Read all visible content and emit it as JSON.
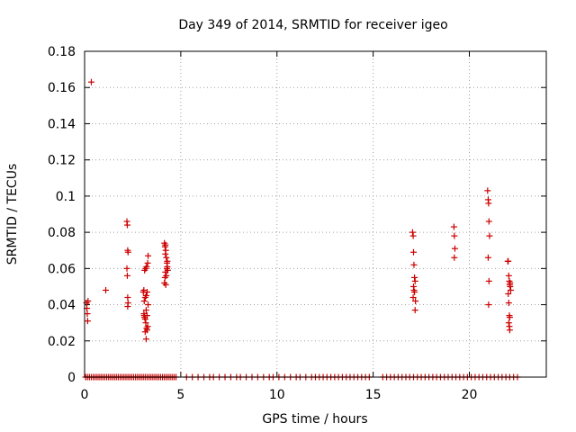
{
  "chart_data": {
    "type": "scatter",
    "title": "Day 349 of 2014, SRMTID for receiver igeo",
    "xlabel": "GPS time / hours",
    "ylabel": "SRMTID / TECUs",
    "xlim": [
      0,
      24
    ],
    "ylim": [
      0,
      0.18
    ],
    "x_ticks": [
      0,
      5,
      10,
      15,
      20
    ],
    "x_tick_labels": [
      "0",
      "5",
      "10",
      "15",
      "20"
    ],
    "y_ticks": [
      0,
      0.02,
      0.04,
      0.06,
      0.08,
      0.1,
      0.12,
      0.14,
      0.16,
      0.18
    ],
    "y_tick_labels": [
      "0",
      "0.02",
      "0.04",
      "0.06",
      "0.08",
      "0.1",
      "0.12",
      "0.14",
      "0.16",
      "0.18"
    ],
    "grid": true,
    "marker": "+",
    "color": "#cc0000",
    "series": [
      {
        "name": "SRMTID",
        "x": [
          0.1,
          0.12,
          0.14,
          0.16,
          0.18,
          0.35,
          1.1,
          2.2,
          2.22,
          2.24,
          2.26,
          2.2,
          2.22,
          2.24,
          2.26,
          2.24,
          3.05,
          3.08,
          3.1,
          3.12,
          3.15,
          3.18,
          3.2,
          3.22,
          3.25,
          3.28,
          3.3,
          3.1,
          3.15,
          3.2,
          3.25,
          3.12,
          3.18,
          3.22,
          3.28,
          3.3,
          3.2,
          3.25,
          3.15,
          3.08,
          4.15,
          4.18,
          4.2,
          4.22,
          4.25,
          4.28,
          4.3,
          4.32,
          4.2,
          4.25,
          4.18,
          4.22,
          4.28,
          4.3,
          4.15,
          4.2,
          17.05,
          17.08,
          17.1,
          17.12,
          17.15,
          17.18,
          17.1,
          17.12,
          17.15,
          17.08,
          17.2,
          17.18,
          19.2,
          19.22,
          19.25,
          19.22,
          20.95,
          20.98,
          21.0,
          21.02,
          21.05,
          20.98,
          21.0,
          21.02,
          22.0,
          22.02,
          22.05,
          22.08,
          22.1,
          22.12,
          22.15,
          22.02,
          22.05,
          22.08,
          22.1,
          22.05,
          22.08,
          22.1,
          22.12
        ],
        "y": [
          0.041,
          0.038,
          0.035,
          0.031,
          0.042,
          0.163,
          0.048,
          0.086,
          0.084,
          0.07,
          0.069,
          0.06,
          0.056,
          0.044,
          0.041,
          0.039,
          0.047,
          0.035,
          0.034,
          0.033,
          0.032,
          0.03,
          0.021,
          0.027,
          0.026,
          0.028,
          0.04,
          0.042,
          0.044,
          0.045,
          0.047,
          0.059,
          0.06,
          0.061,
          0.063,
          0.067,
          0.037,
          0.034,
          0.025,
          0.048,
          0.074,
          0.072,
          0.073,
          0.07,
          0.066,
          0.063,
          0.061,
          0.059,
          0.058,
          0.056,
          0.055,
          0.051,
          0.06,
          0.064,
          0.052,
          0.068,
          0.08,
          0.078,
          0.069,
          0.062,
          0.055,
          0.053,
          0.05,
          0.048,
          0.047,
          0.044,
          0.042,
          0.037,
          0.083,
          0.078,
          0.071,
          0.066,
          0.103,
          0.098,
          0.096,
          0.086,
          0.078,
          0.066,
          0.04,
          0.053,
          0.064,
          0.064,
          0.056,
          0.053,
          0.051,
          0.05,
          0.048,
          0.046,
          0.041,
          0.034,
          0.033,
          0.03,
          0.028,
          0.026,
          0.052
        ]
      },
      {
        "name": "zero baseline",
        "x": [
          0.05,
          0.15,
          0.25,
          0.35,
          0.45,
          0.55,
          0.65,
          0.75,
          0.85,
          0.95,
          1.05,
          1.15,
          1.25,
          1.35,
          1.45,
          1.55,
          1.65,
          1.75,
          1.85,
          1.95,
          2.05,
          2.15,
          2.25,
          2.35,
          2.45,
          2.55,
          2.65,
          2.75,
          2.85,
          2.95,
          3.05,
          3.15,
          3.25,
          3.35,
          3.45,
          3.55,
          3.65,
          3.75,
          3.85,
          3.95,
          4.05,
          4.15,
          4.25,
          4.35,
          4.45,
          4.55,
          4.65,
          4.75,
          5.3,
          5.6,
          5.9,
          6.2,
          6.5,
          6.7,
          7.0,
          7.3,
          7.6,
          7.9,
          8.1,
          8.4,
          8.7,
          9.0,
          9.3,
          9.6,
          9.8,
          10.1,
          10.4,
          10.7,
          11.0,
          11.2,
          11.5,
          11.8,
          12.0,
          12.2,
          12.4,
          12.6,
          12.8,
          13.0,
          13.2,
          13.4,
          13.6,
          13.8,
          14.0,
          14.2,
          14.4,
          14.6,
          14.8,
          15.5,
          15.7,
          15.9,
          16.1,
          16.3,
          16.5,
          16.7,
          16.9,
          17.1,
          17.3,
          17.5,
          17.7,
          17.9,
          18.1,
          18.3,
          18.5,
          18.7,
          18.9,
          19.1,
          19.3,
          19.5,
          19.7,
          19.9,
          20.1,
          20.3,
          20.5,
          20.7,
          20.9,
          21.1,
          21.3,
          21.5,
          21.7,
          21.9,
          22.1,
          22.3,
          22.5
        ],
        "y": [
          0,
          0,
          0,
          0,
          0,
          0,
          0,
          0,
          0,
          0,
          0,
          0,
          0,
          0,
          0,
          0,
          0,
          0,
          0,
          0,
          0,
          0,
          0,
          0,
          0,
          0,
          0,
          0,
          0,
          0,
          0,
          0,
          0,
          0,
          0,
          0,
          0,
          0,
          0,
          0,
          0,
          0,
          0,
          0,
          0,
          0,
          0,
          0,
          0,
          0,
          0,
          0,
          0,
          0,
          0,
          0,
          0,
          0,
          0,
          0,
          0,
          0,
          0,
          0,
          0,
          0,
          0,
          0,
          0,
          0,
          0,
          0,
          0,
          0,
          0,
          0,
          0,
          0,
          0,
          0,
          0,
          0,
          0,
          0,
          0,
          0,
          0,
          0,
          0,
          0,
          0,
          0,
          0,
          0,
          0,
          0,
          0,
          0,
          0,
          0,
          0,
          0,
          0,
          0,
          0,
          0,
          0,
          0,
          0,
          0,
          0,
          0,
          0,
          0,
          0,
          0,
          0,
          0,
          0,
          0,
          0,
          0,
          0
        ]
      }
    ]
  }
}
